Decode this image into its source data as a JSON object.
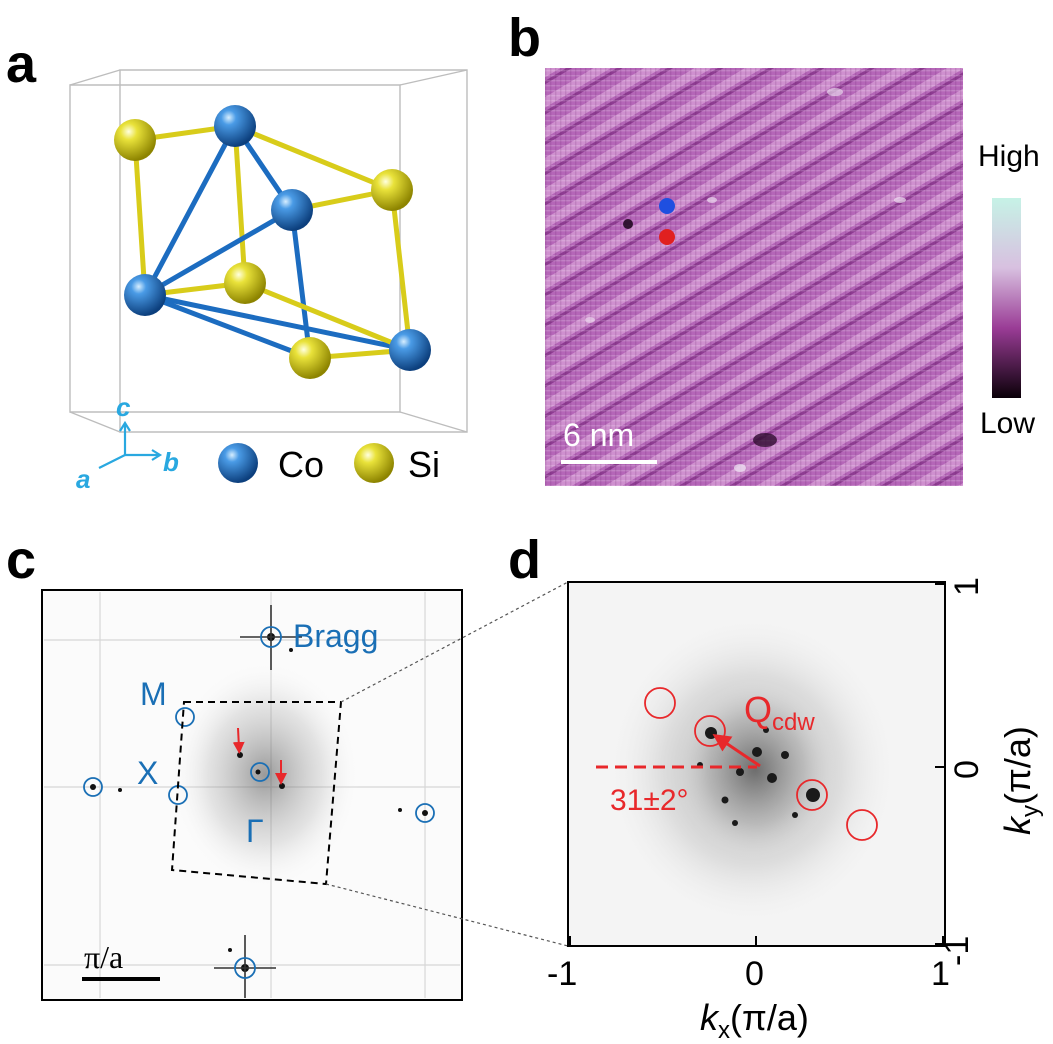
{
  "panel_labels": {
    "a": "a",
    "b": "b",
    "c": "c",
    "d": "d"
  },
  "panel_a": {
    "axis_c": "c",
    "axis_b": "b",
    "axis_a": "a",
    "legend_co": "Co",
    "legend_si": "Si",
    "colors": {
      "co": "#1c6cc0",
      "si": "#d8cc1a",
      "axis": "#29a8e0"
    }
  },
  "panel_b": {
    "scale_bar": "6 nm",
    "colorbar_high": "High",
    "colorbar_low": "Low",
    "marker_colors": [
      "#1f4fe0",
      "#e02020"
    ]
  },
  "panel_c": {
    "label_bragg": "Bragg",
    "label_m": "M",
    "label_x": "X",
    "label_gamma": "Γ",
    "scale_bar": "π/a"
  },
  "panel_d": {
    "label_q": "Q",
    "label_q_sub": "cdw",
    "angle_label": "31±2°",
    "x_ticks": [
      "-1",
      "0",
      "1"
    ],
    "y_ticks": [
      "-1",
      "0",
      "1"
    ],
    "xlabel_k": "k",
    "xlabel_sub": "x",
    "xlabel_unit": "(π/a)",
    "ylabel_k": "k",
    "ylabel_sub": "y",
    "ylabel_unit": "(π/a)"
  }
}
